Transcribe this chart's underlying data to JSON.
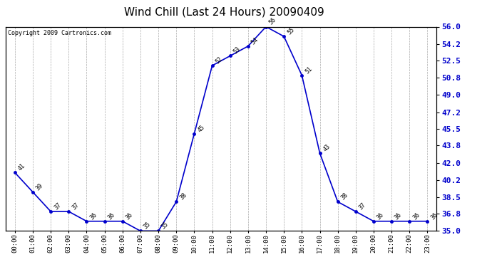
{
  "title": "Wind Chill (Last 24 Hours) 20090409",
  "copyright_text": "Copyright 2009 Cartronics.com",
  "hours": [
    0,
    1,
    2,
    3,
    4,
    5,
    6,
    7,
    8,
    9,
    10,
    11,
    12,
    13,
    14,
    15,
    16,
    17,
    18,
    19,
    20,
    21,
    22,
    23
  ],
  "x_labels": [
    "00:00",
    "01:00",
    "02:00",
    "03:00",
    "04:00",
    "05:00",
    "06:00",
    "07:00",
    "08:00",
    "09:00",
    "10:00",
    "11:00",
    "12:00",
    "13:00",
    "14:00",
    "15:00",
    "16:00",
    "17:00",
    "18:00",
    "19:00",
    "20:00",
    "21:00",
    "22:00",
    "23:00"
  ],
  "values": [
    41,
    39,
    37,
    37,
    36,
    36,
    36,
    35,
    35,
    38,
    45,
    52,
    53,
    54,
    56,
    55,
    51,
    43,
    38,
    37,
    36,
    36,
    36,
    36
  ],
  "line_color": "#0000cc",
  "marker_color": "#0000cc",
  "bg_color": "#ffffff",
  "grid_color": "#aaaaaa",
  "yticks_right": [
    35.0,
    36.8,
    38.5,
    40.2,
    42.0,
    43.8,
    45.5,
    47.2,
    49.0,
    50.8,
    52.5,
    54.2,
    56.0
  ],
  "ylim_min": 35.0,
  "ylim_max": 56.0,
  "title_fontsize": 11,
  "tick_fontsize": 6.5,
  "copyright_fontsize": 6,
  "data_label_fontsize": 6
}
